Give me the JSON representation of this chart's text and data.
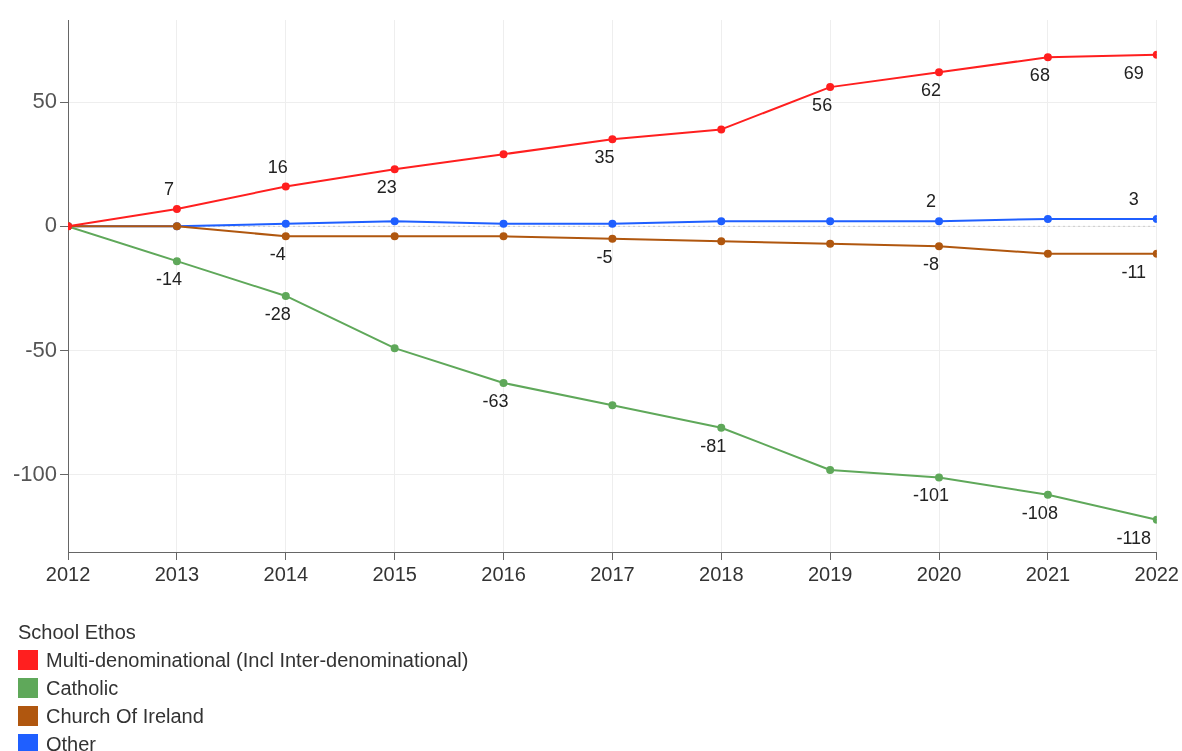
{
  "chart_data": {
    "type": "line",
    "x": [
      2012,
      2013,
      2014,
      2015,
      2016,
      2017,
      2018,
      2019,
      2020,
      2021,
      2022
    ],
    "xlim": [
      2012,
      2022
    ],
    "xticks": [
      2012,
      2013,
      2014,
      2015,
      2016,
      2017,
      2018,
      2019,
      2020,
      2021,
      2022
    ],
    "ylim": [
      -131,
      83
    ],
    "yticks": [
      -100,
      -50,
      0,
      50
    ],
    "grid": true,
    "legend": "bottom left",
    "legend_title": "School Ethos",
    "marker": "circle",
    "line_style": "solid",
    "ref_lines": [
      {
        "axis": "y",
        "value": 0,
        "color": "#cccccc",
        "line_style": "dotted"
      }
    ],
    "series": [
      {
        "name": "Multi-denominational (Incl Inter-denominational)",
        "color": "#ff1f1f",
        "values": [
          0,
          7,
          16,
          23,
          29,
          35,
          39,
          56,
          62,
          68,
          69
        ],
        "value_labels": [
          null,
          "7",
          "16",
          "23",
          null,
          "35",
          null,
          "56",
          "62",
          "68",
          "69"
        ]
      },
      {
        "name": "Catholic",
        "color": "#5fa85a",
        "values": [
          0,
          -14,
          -28,
          -49,
          -63,
          -72,
          -81,
          -98,
          -101,
          -108,
          -118
        ],
        "value_labels": [
          null,
          "-14",
          "-28",
          null,
          "-63",
          null,
          "-81",
          null,
          "-101",
          "-108",
          "-118"
        ]
      },
      {
        "name": "Church Of Ireland",
        "color": "#b0570f",
        "values": [
          0,
          0,
          -4,
          -4,
          -4,
          -5,
          -6,
          -7,
          -8,
          -11,
          -11
        ],
        "value_labels": [
          null,
          null,
          "-4",
          null,
          null,
          "-5",
          null,
          null,
          "-8",
          null,
          "-11"
        ]
      },
      {
        "name": "Other",
        "color": "#1f5fff",
        "values": [
          0,
          0,
          1,
          2,
          1,
          1,
          2,
          2,
          2,
          3,
          3
        ],
        "value_labels": [
          null,
          null,
          null,
          null,
          null,
          null,
          null,
          null,
          "2",
          null,
          "3"
        ]
      }
    ]
  }
}
